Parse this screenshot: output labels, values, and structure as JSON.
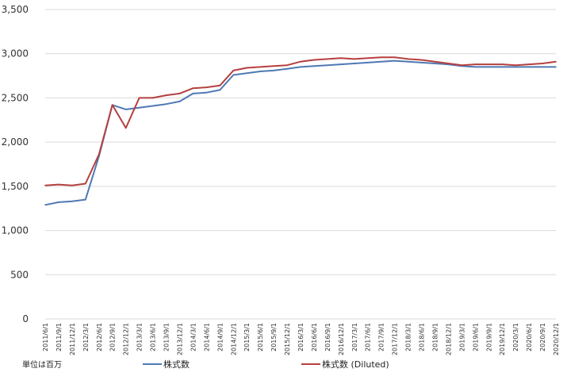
{
  "chart_data": {
    "type": "line",
    "unit_label": "単位は百万",
    "ylim": [
      0,
      3500
    ],
    "yticks": [
      0,
      500,
      1000,
      1500,
      2000,
      2500,
      3000,
      3500
    ],
    "ytick_labels": [
      "0",
      "500",
      "1,000",
      "1,500",
      "2,000",
      "2,500",
      "3,000",
      "3,500"
    ],
    "grid": true,
    "legend_position": "bottom",
    "x": [
      "2011/6/1",
      "2011/9/1",
      "2011/12/1",
      "2012/3/1",
      "2012/6/1",
      "2012/9/1",
      "2012/12/1",
      "2013/3/1",
      "2013/6/1",
      "2013/9/1",
      "2013/12/1",
      "2014/3/1",
      "2014/6/1",
      "2014/9/1",
      "2014/12/1",
      "2015/3/1",
      "2015/6/1",
      "2015/9/1",
      "2015/12/1",
      "2016/3/1",
      "2016/6/1",
      "2016/9/1",
      "2016/12/1",
      "2017/3/1",
      "2017/6/1",
      "2017/9/1",
      "2017/12/1",
      "2018/3/1",
      "2018/6/1",
      "2018/9/1",
      "2018/12/1",
      "2019/3/1",
      "2019/6/1",
      "2019/9/1",
      "2019/12/1",
      "2020/3/1",
      "2020/6/1",
      "2020/9/1",
      "2020/12/1"
    ],
    "series": [
      {
        "name": "株式数",
        "color": "#4e79b4",
        "values": [
          1290,
          1320,
          1330,
          1350,
          1840,
          2420,
          2370,
          2390,
          2410,
          2430,
          2460,
          2550,
          2560,
          2590,
          2760,
          2780,
          2800,
          2810,
          2830,
          2850,
          2860,
          2870,
          2880,
          2890,
          2900,
          2910,
          2920,
          2910,
          2900,
          2890,
          2880,
          2860,
          2850,
          2850,
          2850,
          2850,
          2850,
          2850,
          2850
        ]
      },
      {
        "name": "株式数 (Diluted)",
        "color": "#b5403f",
        "values": [
          1510,
          1520,
          1510,
          1530,
          1860,
          2420,
          2160,
          2500,
          2500,
          2530,
          2550,
          2610,
          2620,
          2640,
          2810,
          2840,
          2850,
          2860,
          2870,
          2910,
          2930,
          2940,
          2950,
          2940,
          2950,
          2960,
          2960,
          2940,
          2930,
          2910,
          2890,
          2870,
          2880,
          2880,
          2880,
          2870,
          2880,
          2890,
          2910
        ]
      }
    ]
  }
}
